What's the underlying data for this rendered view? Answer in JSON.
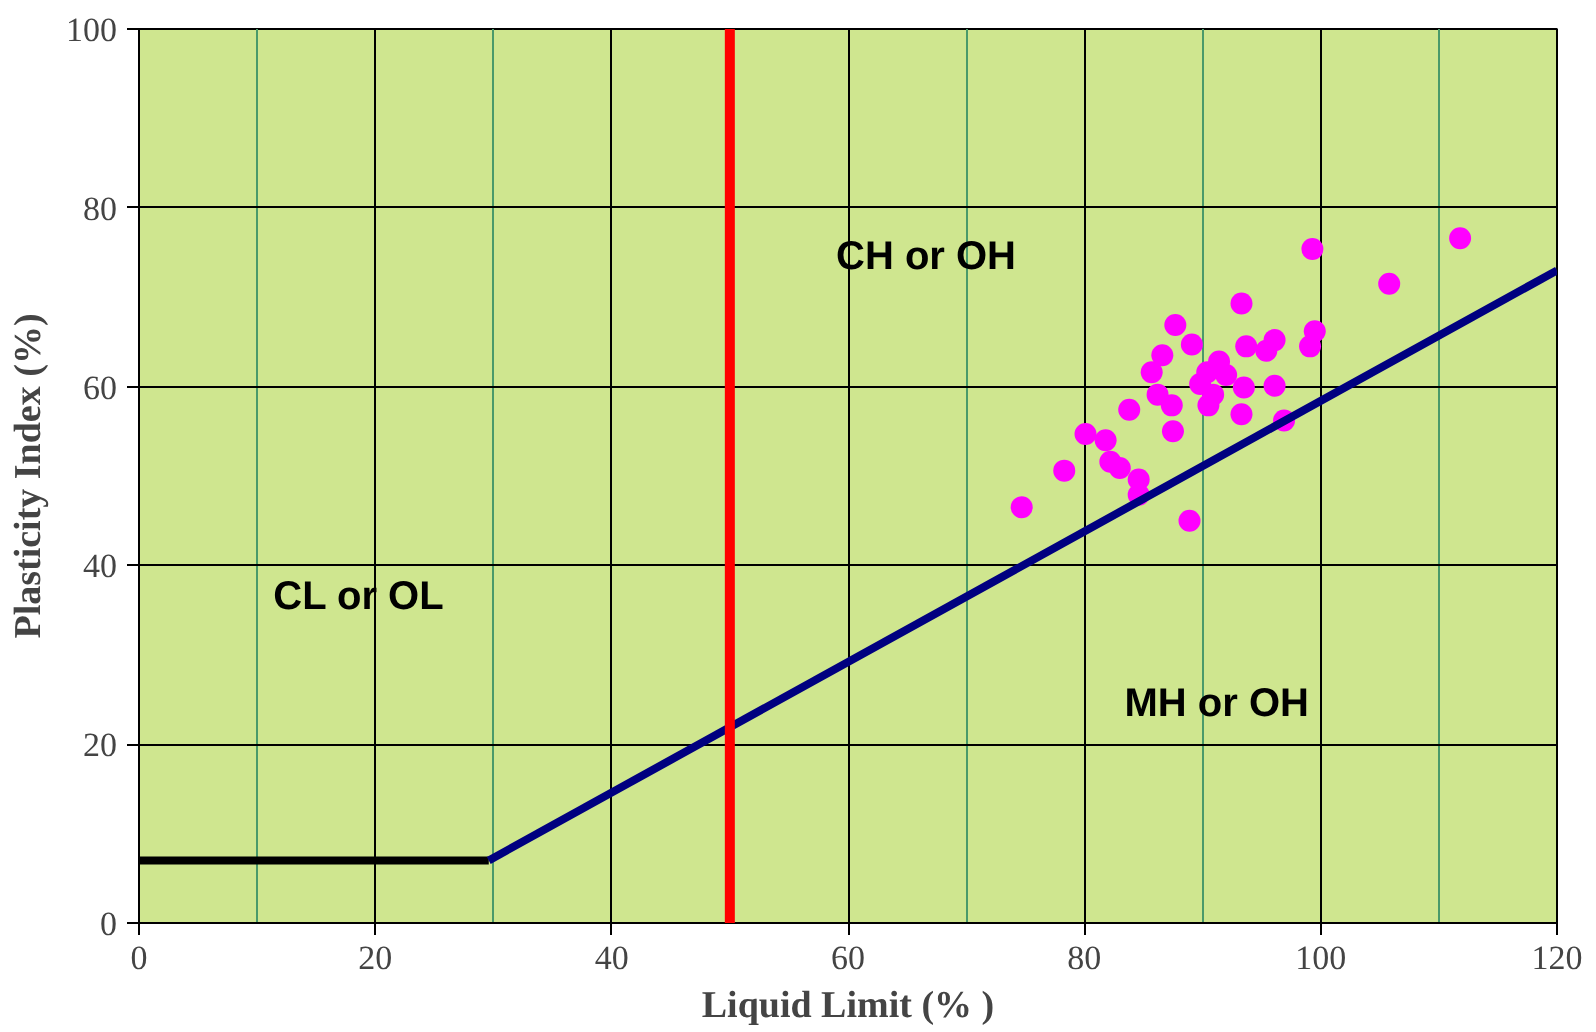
{
  "chart_data": {
    "type": "scatter",
    "xlabel": "Liquid Limit (% )",
    "ylabel": "Plasticity Index (%)",
    "xlim": [
      0,
      120
    ],
    "ylim": [
      0,
      100
    ],
    "xticks": [
      0,
      {
        "value": 10,
        "label": null
      },
      20,
      {
        "value": 30,
        "label": null
      },
      40,
      {
        "value": 50,
        "label": null
      },
      60,
      {
        "value": 70,
        "label": null
      },
      80,
      {
        "value": 90,
        "label": null
      },
      100,
      {
        "value": 110,
        "label": null
      },
      120
    ],
    "yticks": [
      0,
      20,
      40,
      60,
      80,
      100
    ],
    "grid": true,
    "series": [
      {
        "marker": "circle",
        "color": "#ff00ff",
        "x": [
          74.7,
          78.3,
          80.1,
          81.8,
          82.2,
          83.0,
          84.6,
          84.6,
          83.8,
          85.7,
          86.6,
          86.2,
          87.4,
          87.7,
          89.1,
          87.5,
          88.9,
          89.8,
          90.4,
          90.9,
          90.5,
          92.0,
          91.4,
          93.3,
          93.7,
          93.5,
          93.3,
          95.4,
          96.1,
          96.1,
          96.9,
          99.1,
          99.5,
          99.3,
          105.8,
          111.8
        ],
        "values": [
          46.5,
          50.6,
          54.7,
          54.0,
          51.6,
          50.9,
          49.6,
          47.9,
          57.4,
          61.6,
          63.5,
          59.1,
          57.9,
          66.9,
          64.7,
          55.0,
          45.0,
          60.3,
          61.6,
          59.1,
          57.9,
          61.3,
          62.8,
          69.3,
          64.5,
          59.9,
          56.9,
          64.0,
          65.2,
          60.1,
          56.2,
          64.5,
          66.2,
          75.4,
          71.5,
          76.6
        ]
      },
      {
        "type": "line",
        "marker": "none",
        "line_style": "solid",
        "color": "#000000",
        "x": [
          0,
          29.6
        ],
        "values": [
          7,
          7
        ]
      },
      {
        "type": "line",
        "marker": "none",
        "line_style": "solid",
        "color": "#000080",
        "x": [
          29.6,
          120
        ],
        "values": [
          7,
          73
        ]
      }
    ],
    "ref_lines": [
      {
        "axis": "x",
        "value": 50,
        "label": null,
        "color": "#ff0000"
      }
    ],
    "annotations": [
      "CH or OH",
      "CL or OL",
      "MH or OH"
    ]
  }
}
